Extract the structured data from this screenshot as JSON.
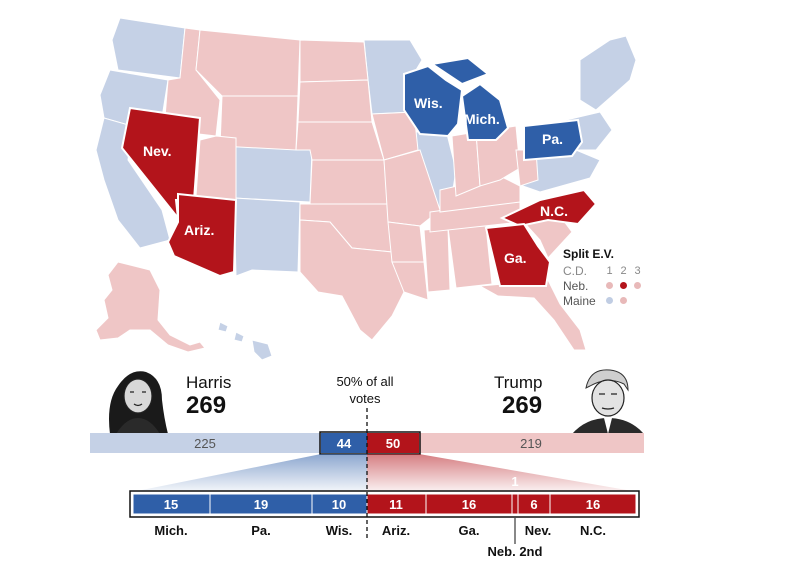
{
  "map": {
    "swing_states": [
      {
        "label": "Nev.",
        "party": "rep"
      },
      {
        "label": "Ariz.",
        "party": "rep"
      },
      {
        "label": "Wis.",
        "party": "dem"
      },
      {
        "label": "Mich.",
        "party": "dem"
      },
      {
        "label": "Pa.",
        "party": "dem"
      },
      {
        "label": "N.C.",
        "party": "rep"
      },
      {
        "label": "Ga.",
        "party": "rep"
      }
    ]
  },
  "legend": {
    "title": "Split E.V.",
    "header_label": "C.D.",
    "columns": [
      "1",
      "2",
      "3"
    ],
    "rows": [
      {
        "label": "Neb.",
        "colors": [
          "#e8b9b9",
          "#b3141b",
          "#e8b9b9"
        ]
      },
      {
        "label": "Maine",
        "colors": [
          "#c0cde3",
          "#e8b9b9"
        ]
      }
    ]
  },
  "candidates": {
    "left": {
      "name": "Harris",
      "votes": "269"
    },
    "right": {
      "name": "Trump",
      "votes": "269"
    }
  },
  "midline_label": "50% of all votes",
  "totals": {
    "dem_safe": "225",
    "dem_swing": "44",
    "rep_swing": "50",
    "rep_safe": "219"
  },
  "breakdown": {
    "dem": [
      {
        "state": "Mich.",
        "votes": "15"
      },
      {
        "state": "Pa.",
        "votes": "19"
      },
      {
        "state": "Wis.",
        "votes": "10"
      }
    ],
    "rep": [
      {
        "state": "Ariz.",
        "votes": "11"
      },
      {
        "state": "Ga.",
        "votes": "16"
      },
      {
        "state": "Neb. 2nd",
        "votes": "1"
      },
      {
        "state": "Nev.",
        "votes": "6"
      },
      {
        "state": "N.C.",
        "votes": "16"
      }
    ]
  },
  "colors": {
    "dem": "#2f5fa8",
    "rep": "#b3141b",
    "dem_light": "#c5d1e6",
    "rep_light": "#efc6c6"
  }
}
